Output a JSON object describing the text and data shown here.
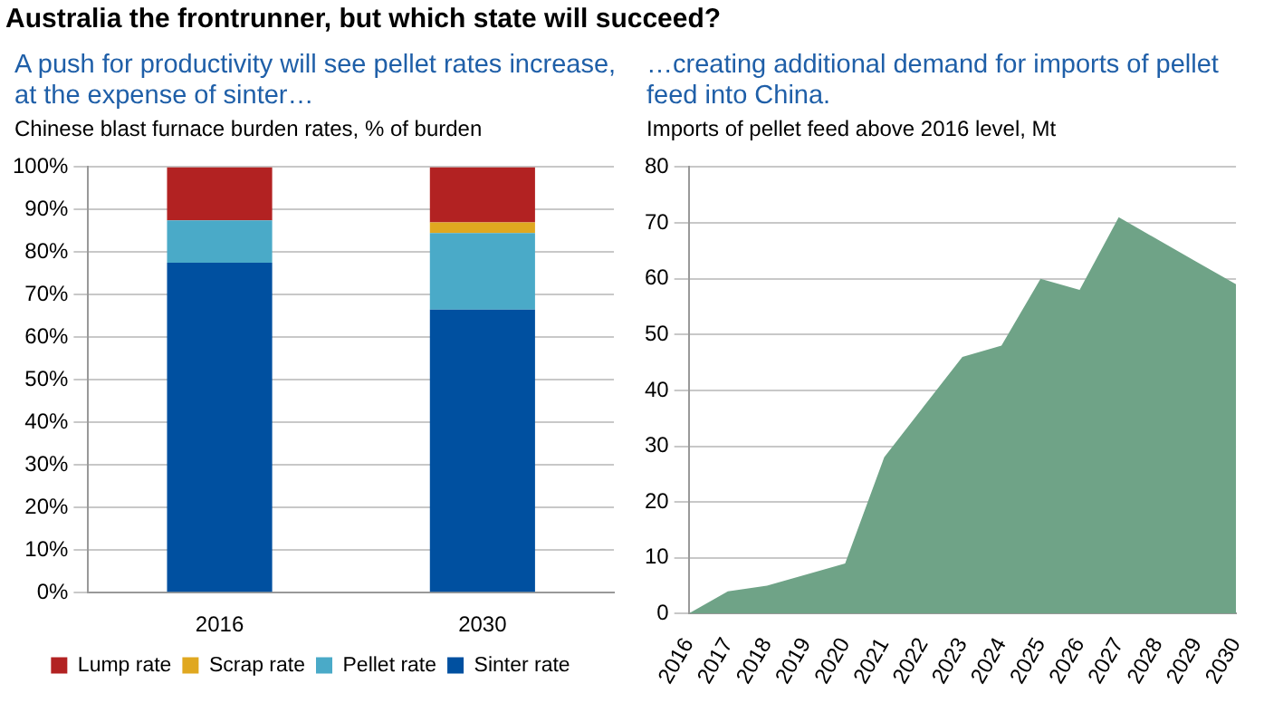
{
  "chart_data": [
    {
      "type": "other",
      "title": "Australia the frontrunner, but which state will succeed?"
    },
    {
      "type": "bar",
      "title": "A push for productivity will see pellet rates increase, at the expense of sinter…",
      "subtitle": "Chinese blast furnace burden rates, % of burden",
      "categories": [
        "2016",
        "2030"
      ],
      "stacked": true,
      "series": [
        {
          "name": "Sinter rate",
          "color": "#0050a0",
          "values": [
            77.5,
            66.5
          ]
        },
        {
          "name": "Pellet rate",
          "color": "#4aaac8",
          "values": [
            10,
            18
          ]
        },
        {
          "name": "Scrap rate",
          "color": "#e0a820",
          "values": [
            0,
            2.5
          ]
        },
        {
          "name": "Lump rate",
          "color": "#b22222",
          "values": [
            12.5,
            13
          ]
        }
      ],
      "ylim": [
        0,
        100
      ],
      "yticks": [
        {
          "value": 0,
          "label": "0%"
        },
        {
          "value": 10,
          "label": "10%"
        },
        {
          "value": 20,
          "label": "20%"
        },
        {
          "value": 30,
          "label": "30%"
        },
        {
          "value": 40,
          "label": "40%"
        },
        {
          "value": 50,
          "label": "50%"
        },
        {
          "value": 60,
          "label": "60%"
        },
        {
          "value": 70,
          "label": "70%"
        },
        {
          "value": 80,
          "label": "80%"
        },
        {
          "value": 90,
          "label": "90%"
        },
        {
          "value": 100,
          "label": "100%"
        }
      ],
      "grid": "y",
      "legend": "bottom"
    },
    {
      "type": "area",
      "title": "…creating additional demand for imports of pellet feed into China.",
      "subtitle": "Imports of pellet feed above 2016 level, Mt",
      "categories": [
        "2016",
        "2017",
        "2018",
        "2019",
        "2020",
        "2021",
        "2022",
        "2023",
        "2024",
        "2025",
        "2026",
        "2027",
        "2028",
        "2029",
        "2030"
      ],
      "series": [
        {
          "color": "#6fa387",
          "values": [
            0,
            4,
            5,
            7,
            9,
            28,
            37,
            46,
            48,
            60,
            58,
            71,
            67,
            63,
            59
          ]
        }
      ],
      "ylim": [
        0,
        80
      ],
      "yticks": [
        0,
        10,
        20,
        30,
        40,
        50,
        60,
        70,
        80
      ],
      "grid": "y"
    }
  ]
}
